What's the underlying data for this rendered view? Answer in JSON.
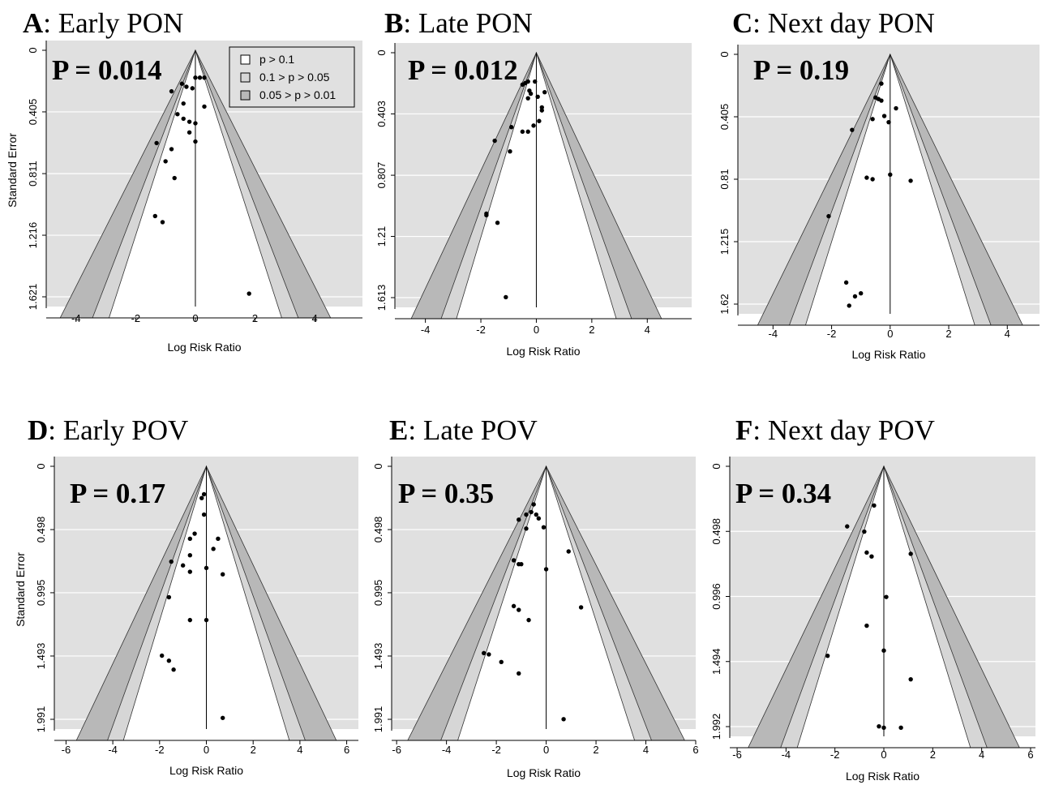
{
  "legend": [
    {
      "label": "p > 0.1",
      "color": "#ffffff"
    },
    {
      "label": "0.1 > p > 0.05",
      "color": "#d6d6d6"
    },
    {
      "label": "0.05 > p > 0.01",
      "color": "#b8b8b8"
    }
  ],
  "colors": {
    "background": "#e0e0e0",
    "gridline": "#ffffff",
    "point": "#000000"
  },
  "chart_data": [
    {
      "type": "scatter",
      "panel_letter": "A",
      "title": ": Early PON",
      "annotation": "P = 0.014",
      "xlabel": "Log Risk Ratio",
      "ylabel": "Standard Error",
      "xticks": [
        "-4",
        "-2",
        "0",
        "2",
        "4"
      ],
      "yticks": [
        "0",
        "0.405",
        "0.811",
        "1.216",
        "1.621"
      ],
      "xlim": [
        -4.5,
        4.5
      ],
      "ylim": [
        0,
        1.621
      ],
      "grid": true,
      "legend_position": "top-right",
      "points": [
        [
          0.0,
          0.18
        ],
        [
          0.15,
          0.18
        ],
        [
          0.3,
          0.18
        ],
        [
          -0.1,
          0.25
        ],
        [
          -0.3,
          0.24
        ],
        [
          -0.45,
          0.22
        ],
        [
          -0.8,
          0.27
        ],
        [
          -0.4,
          0.35
        ],
        [
          0.3,
          0.37
        ],
        [
          -0.6,
          0.42
        ],
        [
          -0.4,
          0.45
        ],
        [
          -0.2,
          0.47
        ],
        [
          0.0,
          0.48
        ],
        [
          -0.2,
          0.54
        ],
        [
          0.0,
          0.6
        ],
        [
          -1.3,
          0.61
        ],
        [
          -0.8,
          0.65
        ],
        [
          -1.0,
          0.73
        ],
        [
          -0.7,
          0.84
        ],
        [
          -1.35,
          1.09
        ],
        [
          -1.1,
          1.13
        ],
        [
          1.8,
          1.6
        ]
      ]
    },
    {
      "type": "scatter",
      "panel_letter": "B",
      "title": ": Late PON",
      "annotation": "P = 0.012",
      "xlabel": "Log Risk Ratio",
      "ylabel": "",
      "xticks": [
        "-4",
        "-2",
        "0",
        "2",
        "4"
      ],
      "yticks": [
        "0",
        "0.403",
        "0.807",
        "1.21",
        "1.613"
      ],
      "xlim": [
        -4.5,
        4.5
      ],
      "ylim": [
        0,
        1.613
      ],
      "grid": true,
      "points": [
        [
          -0.3,
          0.19
        ],
        [
          -0.05,
          0.19
        ],
        [
          -0.4,
          0.2
        ],
        [
          -0.5,
          0.21
        ],
        [
          -0.25,
          0.25
        ],
        [
          0.3,
          0.26
        ],
        [
          -0.2,
          0.27
        ],
        [
          0.05,
          0.29
        ],
        [
          -0.3,
          0.3
        ],
        [
          0.2,
          0.36
        ],
        [
          0.2,
          0.38
        ],
        [
          0.1,
          0.45
        ],
        [
          -0.1,
          0.48
        ],
        [
          -0.5,
          0.52
        ],
        [
          -0.3,
          0.52
        ],
        [
          -0.9,
          0.49
        ],
        [
          -0.95,
          0.65
        ],
        [
          -1.5,
          0.58
        ],
        [
          -1.8,
          1.06
        ],
        [
          -1.8,
          1.07
        ],
        [
          -1.4,
          1.12
        ],
        [
          -1.1,
          1.61
        ]
      ]
    },
    {
      "type": "scatter",
      "panel_letter": "C",
      "title": ": Next day PON",
      "annotation": "P = 0.19",
      "xlabel": "Log Risk Ratio",
      "ylabel": "",
      "xticks": [
        "-4",
        "-2",
        "0",
        "2",
        "4"
      ],
      "yticks": [
        "0",
        "0.405",
        "0.81",
        "1.215",
        "1.62"
      ],
      "xlim": [
        -4.5,
        4.5
      ],
      "ylim": [
        0,
        1.62
      ],
      "grid": true,
      "points": [
        [
          -0.3,
          0.19
        ],
        [
          -0.5,
          0.28
        ],
        [
          -0.4,
          0.29
        ],
        [
          -0.3,
          0.3
        ],
        [
          0.2,
          0.35
        ],
        [
          -0.2,
          0.4
        ],
        [
          -0.6,
          0.42
        ],
        [
          -0.05,
          0.44
        ],
        [
          -1.3,
          0.49
        ],
        [
          -0.8,
          0.8
        ],
        [
          -0.6,
          0.81
        ],
        [
          0.0,
          0.78
        ],
        [
          0.7,
          0.82
        ],
        [
          -2.1,
          1.05
        ],
        [
          -1.5,
          1.48
        ],
        [
          -1.2,
          1.57
        ],
        [
          -1.0,
          1.55
        ],
        [
          -1.4,
          1.63
        ]
      ]
    },
    {
      "type": "scatter",
      "panel_letter": "D",
      "title": ": Early POV",
      "annotation": "P = 0.17",
      "xlabel": "Log Risk Ratio",
      "ylabel": "Standard Error",
      "xticks": [
        "-6",
        "-4",
        "-2",
        "0",
        "2",
        "4",
        "6"
      ],
      "yticks": [
        "0",
        "0.498",
        "0.995",
        "1.493",
        "1.991"
      ],
      "xlim": [
        -6.2,
        6.2
      ],
      "ylim": [
        0,
        1.991
      ],
      "grid": true,
      "points": [
        [
          -0.1,
          0.22
        ],
        [
          -0.2,
          0.25
        ],
        [
          -0.1,
          0.38
        ],
        [
          -0.7,
          0.57
        ],
        [
          -0.5,
          0.53
        ],
        [
          0.3,
          0.65
        ],
        [
          -0.7,
          0.7
        ],
        [
          0.5,
          0.57
        ],
        [
          -1.5,
          0.75
        ],
        [
          -1.0,
          0.78
        ],
        [
          -0.7,
          0.83
        ],
        [
          0.0,
          0.8
        ],
        [
          0.7,
          0.85
        ],
        [
          -1.6,
          1.03
        ],
        [
          -0.7,
          1.21
        ],
        [
          0.0,
          1.21
        ],
        [
          -1.9,
          1.49
        ],
        [
          -1.6,
          1.53
        ],
        [
          -1.4,
          1.6
        ],
        [
          0.7,
          1.98
        ]
      ]
    },
    {
      "type": "scatter",
      "panel_letter": "E",
      "title": ": Late POV",
      "annotation": "P = 0.35",
      "xlabel": "Log Risk Ratio",
      "ylabel": "",
      "xticks": [
        "-6",
        "-4",
        "-2",
        "0",
        "2",
        "4",
        "6"
      ],
      "yticks": [
        "0",
        "0.498",
        "0.995",
        "1.493",
        "1.991"
      ],
      "xlim": [
        -6.2,
        6.2
      ],
      "ylim": [
        0,
        1.991
      ],
      "grid": true,
      "points": [
        [
          -0.5,
          0.3
        ],
        [
          -0.6,
          0.36
        ],
        [
          -0.8,
          0.38
        ],
        [
          -1.1,
          0.42
        ],
        [
          -0.4,
          0.38
        ],
        [
          -0.3,
          0.41
        ],
        [
          -0.8,
          0.49
        ],
        [
          -0.1,
          0.48
        ],
        [
          0.9,
          0.67
        ],
        [
          -1.3,
          0.74
        ],
        [
          -1.1,
          0.77
        ],
        [
          -1.0,
          0.77
        ],
        [
          0.0,
          0.81
        ],
        [
          -1.3,
          1.1
        ],
        [
          -1.1,
          1.13
        ],
        [
          1.4,
          1.11
        ],
        [
          -0.7,
          1.21
        ],
        [
          -2.5,
          1.47
        ],
        [
          -2.3,
          1.48
        ],
        [
          -1.8,
          1.54
        ],
        [
          -1.1,
          1.63
        ],
        [
          0.7,
          1.99
        ]
      ]
    },
    {
      "type": "scatter",
      "panel_letter": "F",
      "title": ": Next day POV",
      "annotation": "P = 0.34",
      "xlabel": "Log Risk Ratio",
      "ylabel": "",
      "xticks": [
        "-6",
        "-4",
        "-2",
        "0",
        "2",
        "4",
        "6"
      ],
      "yticks": [
        "0",
        "0.498",
        "0.996",
        "1.494",
        "1.992"
      ],
      "xlim": [
        -6.2,
        6.2
      ],
      "ylim": [
        0,
        1.992
      ],
      "grid": true,
      "points": [
        [
          -0.4,
          0.3
        ],
        [
          -1.5,
          0.46
        ],
        [
          -0.8,
          0.5
        ],
        [
          -0.7,
          0.66
        ],
        [
          -0.5,
          0.69
        ],
        [
          1.1,
          0.67
        ],
        [
          0.1,
          1.0
        ],
        [
          -0.7,
          1.22
        ],
        [
          -2.3,
          1.45
        ],
        [
          0.0,
          1.41
        ],
        [
          1.1,
          1.63
        ],
        [
          -0.2,
          1.99
        ],
        [
          0.0,
          2.0
        ],
        [
          0.7,
          2.0
        ]
      ]
    }
  ]
}
